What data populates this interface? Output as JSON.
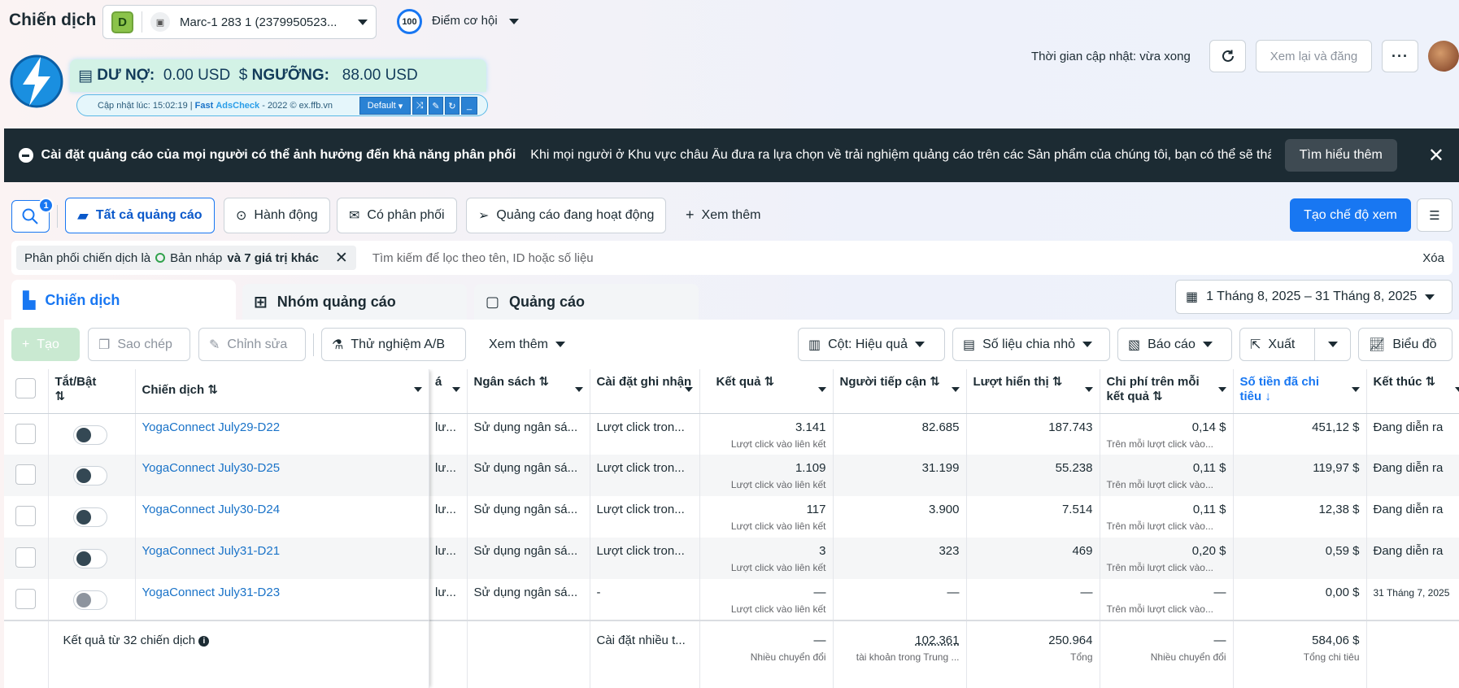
{
  "header": {
    "title": "Chiến dịch",
    "account": {
      "badge": "D",
      "name": "Marc-1 283 1 (2379950523..."
    },
    "score": {
      "value": "100",
      "label": "Điểm cơ hội"
    },
    "update_time": "Thời gian cập nhật: vừa xong",
    "review_button": "Xem lại và đăng"
  },
  "extension": {
    "debt_label": "DƯ NỢ:",
    "debt_value": "0.00 USD",
    "threshold_label": "NGƯỠNG:",
    "threshold_value": "88.00 USD",
    "updated": "Cập nhật lúc: 15:02:19 |",
    "brand_fast": "Fast",
    "brand_name": "AdsCheck",
    "copyright": "- 2022 © ex.ffb.vn",
    "profile": "Default"
  },
  "notice": {
    "title": "Cài đặt quảng cáo của mọi người có thể ảnh hưởng đến khả năng phân phối",
    "text": "Khi mọi người ở Khu vực châu Âu đưa ra lựa chọn về trải nghiệm quảng cáo trên các Sản phẩm của chúng tôi, bạn có thể sẽ thấy tác...",
    "learn_more": "Tìm hiểu thêm"
  },
  "filters": {
    "search_badge": "1",
    "pills": [
      "Tất cả quảng cáo",
      "Hành động",
      "Có phân phối",
      "Quảng cáo đang hoạt động"
    ],
    "more": "Xem thêm",
    "create_view": "Tạo chế độ xem",
    "chip_prefix": "Phân phối chiến dịch là",
    "chip_value": "Bản nháp",
    "chip_suffix": "và 7 giá trị khác",
    "search_placeholder": "Tìm kiếm để lọc theo tên, ID hoặc số liệu",
    "clear": "Xóa"
  },
  "level_tabs": [
    "Chiến dịch",
    "Nhóm quảng cáo",
    "Quảng cáo"
  ],
  "date_range": "1 Tháng 8, 2025 – 31 Tháng 8, 2025",
  "toolbar": {
    "create": "Tạo",
    "copy": "Sao chép",
    "edit": "Chỉnh sửa",
    "ab_test": "Thử nghiệm A/B",
    "more": "Xem thêm",
    "columns": "Cột: Hiệu quả",
    "breakdown": "Số liệu chia nhỏ",
    "reports": "Báo cáo",
    "export": "Xuất",
    "charts": "Biểu đồ"
  },
  "table": {
    "headers": {
      "toggle": "Tắt/Bật",
      "campaign": "Chiến dịch",
      "cut": "á",
      "budget": "Ngân sách",
      "attribution": "Cài đặt ghi nhận",
      "results": "Kết quả",
      "reach": "Người tiếp cận",
      "impressions": "Lượt hiển thị",
      "cost": "Chi phí trên mỗi kết quả",
      "spent": "Số tiền đã chi tiêu",
      "ends": "Kết thúc"
    },
    "rows": [
      {
        "name": "YogaConnect July29-D22",
        "cut": "lư...",
        "budget": "Sử dụng ngân sá...",
        "attribution": "Lượt click tron...",
        "results": "3.141",
        "results_sub": "Lượt click vào liên kết",
        "reach": "82.685",
        "impressions": "187.743",
        "cost": "0,14 $",
        "cost_sub": "Trên mỗi lượt click vào...",
        "spent": "451,12 $",
        "ends": "Đang diễn ra"
      },
      {
        "name": "YogaConnect July30-D25",
        "cut": "lư...",
        "budget": "Sử dụng ngân sá...",
        "attribution": "Lượt click tron...",
        "results": "1.109",
        "results_sub": "Lượt click vào liên kết",
        "reach": "31.199",
        "impressions": "55.238",
        "cost": "0,11 $",
        "cost_sub": "Trên mỗi lượt click vào...",
        "spent": "119,97 $",
        "ends": "Đang diễn ra"
      },
      {
        "name": "YogaConnect July30-D24",
        "cut": "lư...",
        "budget": "Sử dụng ngân sá...",
        "attribution": "Lượt click tron...",
        "results": "117",
        "results_sub": "Lượt click vào liên kết",
        "reach": "3.900",
        "impressions": "7.514",
        "cost": "0,11 $",
        "cost_sub": "Trên mỗi lượt click vào...",
        "spent": "12,38 $",
        "ends": "Đang diễn ra"
      },
      {
        "name": "YogaConnect July31-D21",
        "cut": "lư...",
        "budget": "Sử dụng ngân sá...",
        "attribution": "Lượt click tron...",
        "results": "3",
        "results_sub": "Lượt click vào liên kết",
        "reach": "323",
        "impressions": "469",
        "cost": "0,20 $",
        "cost_sub": "Trên mỗi lượt click vào...",
        "spent": "0,59 $",
        "ends": "Đang diễn ra"
      },
      {
        "name": "YogaConnect July31-D23",
        "cut": "lư...",
        "budget": "Sử dụng ngân sá...",
        "attribution": "-",
        "results": "—",
        "results_sub": "Lượt click vào liên kết",
        "reach": "—",
        "impressions": "—",
        "cost": "—",
        "cost_sub": "Trên mỗi lượt click vào...",
        "spent": "0,00 $",
        "ends": "31 Tháng 7, 2025"
      }
    ],
    "total": {
      "label": "Kết quả từ 32 chiến dịch",
      "attribution": "Cài đặt nhiều t...",
      "results": "—",
      "results_sub": "Nhiều chuyển đổi",
      "reach": "102.361",
      "reach_sub": "tài khoản trong Trung ...",
      "impressions": "250.964",
      "impressions_sub": "Tổng",
      "cost": "—",
      "cost_sub": "Nhiều chuyển đổi",
      "spent": "584,06 $",
      "spent_sub": "Tổng chi tiêu"
    }
  }
}
